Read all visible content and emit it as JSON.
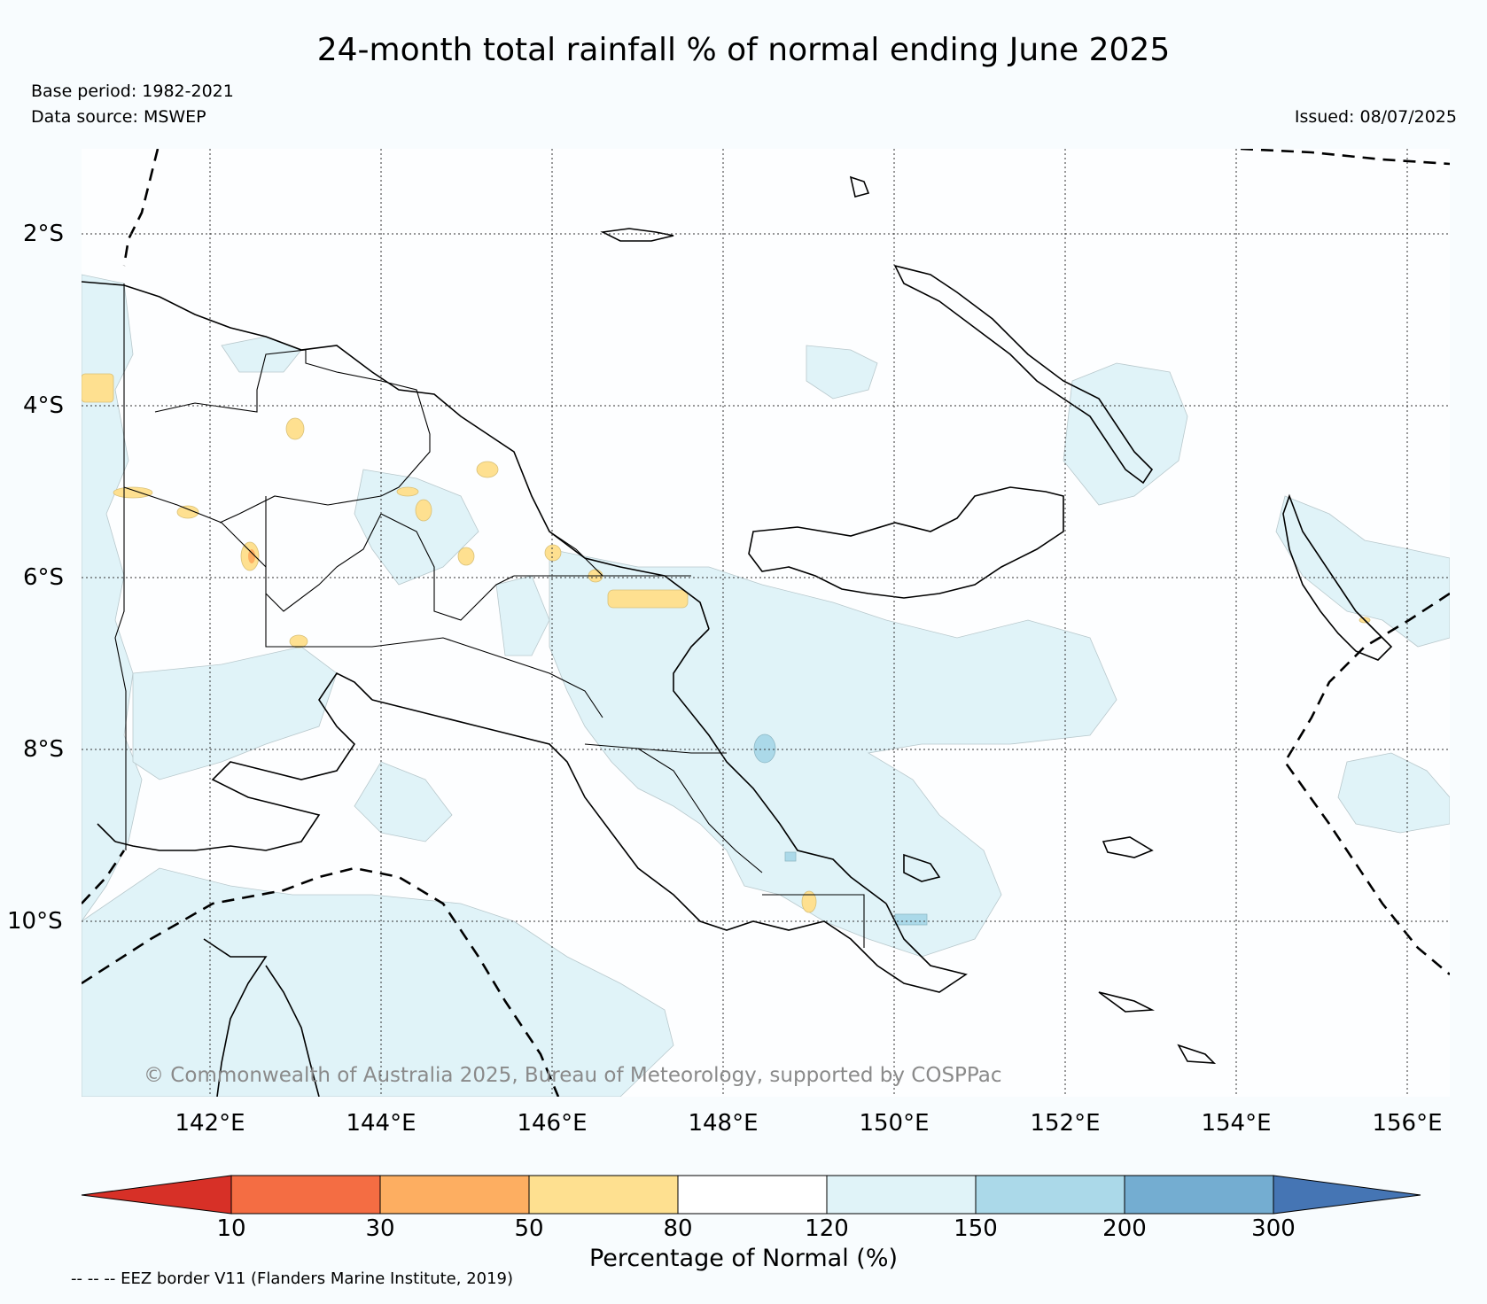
{
  "title": "24-month total rainfall % of normal ending June 2025",
  "base_period": "Base period: 1982-2021",
  "data_source": "Data source: MSWEP",
  "issued": "Issued: 08/07/2025",
  "copyright": "© Commonwealth of Australia 2025, Bureau of Meteorology, supported by COSPPac",
  "lon_labels": [
    "142°E",
    "144°E",
    "146°E",
    "148°E",
    "150°E",
    "152°E",
    "154°E",
    "156°E"
  ],
  "lat_labels": [
    "2°S",
    "4°S",
    "6°S",
    "8°S",
    "10°S"
  ],
  "colorbar": {
    "label": "Percentage of Normal (%)",
    "ticks": [
      "10",
      "30",
      "50",
      "80",
      "120",
      "150",
      "200",
      "300"
    ],
    "colors": {
      "lt10": "#d73027",
      "c10_30": "#f46d43",
      "c30_50": "#fdae61",
      "c50_80": "#fee090",
      "c80_120": "#ffffff",
      "c120_150": "#e0f3f8",
      "c150_200": "#abd9e9",
      "c200_300": "#74add1",
      "gt300": "#4575b4"
    }
  },
  "footnote": "-- -- -- EEZ border V11 (Flanders Marine Institute, 2019)"
}
